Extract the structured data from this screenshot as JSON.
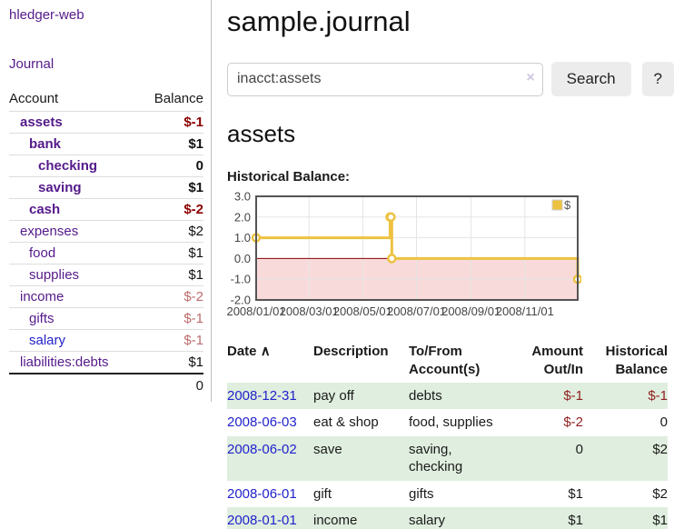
{
  "colors": {
    "purple": "#551a8b",
    "blue_link": "#2222cc",
    "neg_bold": "#8b0000",
    "neg_reg": "#8f1f1f",
    "neg_muted": "#bd6c6c",
    "stripe_green": "#dfeede",
    "button_bg": "#ececec",
    "chart_line": "#edc240",
    "chart_negative_region": "#f9dada",
    "chart_zero_line": "#8b0000",
    "chart_grid": "#e5e5e5",
    "chart_border": "#545454",
    "axis_text": "#444444"
  },
  "app": {
    "title": "hledger-web"
  },
  "sidebar": {
    "nav_journal": "Journal",
    "table": {
      "headers": {
        "account": "Account",
        "balance": "Balance"
      },
      "accounts": [
        {
          "name": "assets",
          "level": 1,
          "bold": true,
          "blue": false,
          "balance": "$-1",
          "balance_style": "neg-bold"
        },
        {
          "name": "bank",
          "level": 2,
          "bold": true,
          "blue": false,
          "balance": "$1",
          "balance_style": "pos-bold"
        },
        {
          "name": "checking",
          "level": 3,
          "bold": true,
          "blue": false,
          "balance": "0",
          "balance_style": "pos-bold"
        },
        {
          "name": "saving",
          "level": 3,
          "bold": true,
          "blue": false,
          "balance": "$1",
          "balance_style": "pos-bold"
        },
        {
          "name": "cash",
          "level": 2,
          "bold": true,
          "blue": false,
          "balance": "$-2",
          "balance_style": "neg-bold"
        },
        {
          "name": "expenses",
          "level": 1,
          "bold": false,
          "blue": false,
          "balance": "$2",
          "balance_style": "pos"
        },
        {
          "name": "food",
          "level": 2,
          "bold": false,
          "blue": false,
          "balance": "$1",
          "balance_style": "pos"
        },
        {
          "name": "supplies",
          "level": 2,
          "bold": false,
          "blue": false,
          "balance": "$1",
          "balance_style": "pos"
        },
        {
          "name": "income",
          "level": 1,
          "bold": false,
          "blue": false,
          "balance": "$-2",
          "balance_style": "neg-muted"
        },
        {
          "name": "gifts",
          "level": 2,
          "bold": false,
          "blue": false,
          "balance": "$-1",
          "balance_style": "neg-muted"
        },
        {
          "name": "salary",
          "level": 2,
          "bold": false,
          "blue": true,
          "balance": "$-1",
          "balance_style": "neg-muted"
        },
        {
          "name": "liabilities:debts",
          "level": 1,
          "bold": false,
          "blue": false,
          "balance": "$1",
          "balance_style": "pos"
        }
      ],
      "total": "0"
    }
  },
  "header": {
    "title": "sample.journal"
  },
  "search": {
    "value": "inacct:assets",
    "clear_icon": "×",
    "button_label": "Search",
    "help_label": "?"
  },
  "account_page": {
    "heading": "assets"
  },
  "chart_data": {
    "type": "line",
    "step": true,
    "title": "Historical Balance:",
    "series": [
      {
        "name": "$",
        "color": "#edc240",
        "points": [
          [
            "2008-01-01",
            1
          ],
          [
            "2008-06-01",
            2
          ],
          [
            "2008-06-02",
            2
          ],
          [
            "2008-06-03",
            0
          ],
          [
            "2008-12-31",
            -1
          ]
        ]
      }
    ],
    "xlim": [
      "2008-01-01",
      "2008-12-31"
    ],
    "ylim": [
      -2,
      3
    ],
    "x_ticks": [
      {
        "t": "2008-01-01",
        "label": "2008/01/01"
      },
      {
        "t": "2008-03-01",
        "label": "2008/03/01"
      },
      {
        "t": "2008-05-01",
        "label": "2008/05/01"
      },
      {
        "t": "2008-07-01",
        "label": "2008/07/01"
      },
      {
        "t": "2008-09-01",
        "label": "2008/09/01"
      },
      {
        "t": "2008-11-01",
        "label": "2008/11/01"
      }
    ],
    "y_ticks": [
      {
        "v": 3,
        "label": "3.0"
      },
      {
        "v": 2,
        "label": "2.0"
      },
      {
        "v": 1,
        "label": "1.0"
      },
      {
        "v": 0,
        "label": "0.0"
      },
      {
        "v": -1,
        "label": "-1.0"
      },
      {
        "v": -2,
        "label": "-2.0"
      }
    ],
    "grid": true,
    "negative_region": true,
    "legend": {
      "label": "$",
      "position": "top-right"
    }
  },
  "register": {
    "headers": {
      "date": "Date",
      "description": "Description",
      "accounts": "To/From Account(s)",
      "amount": "Amount Out/In",
      "balance": "Historical Balance"
    },
    "sort_asc_icon": "∧",
    "rows": [
      {
        "date": "2008-12-31",
        "description": "pay off",
        "accounts": "debts",
        "amount": "$-1",
        "amount_neg": true,
        "balance": "$-1",
        "balance_neg": true
      },
      {
        "date": "2008-06-03",
        "description": "eat & shop",
        "accounts": "food, supplies",
        "amount": "$-2",
        "amount_neg": true,
        "balance": "0",
        "balance_neg": false
      },
      {
        "date": "2008-06-02",
        "description": "save",
        "accounts": "saving, checking",
        "amount": "0",
        "amount_neg": false,
        "balance": "$2",
        "balance_neg": false
      },
      {
        "date": "2008-06-01",
        "description": "gift",
        "accounts": "gifts",
        "amount": "$1",
        "amount_neg": false,
        "balance": "$2",
        "balance_neg": false
      },
      {
        "date": "2008-01-01",
        "description": "income",
        "accounts": "salary",
        "amount": "$1",
        "amount_neg": false,
        "balance": "$1",
        "balance_neg": false
      }
    ]
  }
}
